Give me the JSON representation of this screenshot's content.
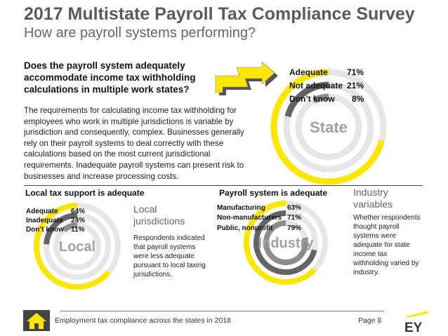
{
  "header": {
    "title": "2017 Multistate Payroll Tax Compliance Survey",
    "subtitle": "How are payroll systems performing?"
  },
  "intro": {
    "question": "Does the payroll system adequately accommodate income tax withholding calculations in multiple work states?",
    "body": "The requirements for calculating income tax withholding for employees who work in multiple jurisdictions is variable by jurisdiction and consequently, complex. Businesses generally rely on their payroll systems to deal correctly with these calculations based on the most current jurisdictional requirements. Inadequate payroll systems can present risk to businesses and increase processing costs."
  },
  "sections": {
    "local_heading": "Local tax support is adequate",
    "local_side_title": "Local jurisdictions",
    "local_side_text": "Respondents indicated that payroll systems were less adequate pursuant to local taxing jurisdictions.",
    "industry_heading": "Payroll system is adequate",
    "industry_side_title": "Industry variables",
    "industry_side_text": "Whether respondents thought payroll systems were adequate for state income tax withholding varied by industry."
  },
  "footer": {
    "text": "Employment tax compliance across the states in 2018",
    "page": "Page 8",
    "logo_text": "EY"
  },
  "icons": {
    "home": "home-icon",
    "logo": "ey-logo"
  },
  "colors": {
    "yellow": "#FFE600",
    "dark_gray": "#646464",
    "mid_gray": "#8c8c8c",
    "light_gray": "#c0c0c0",
    "track": "#e6e6e6"
  },
  "chart_data": [
    {
      "type": "donut",
      "center_label": "State",
      "series": [
        {
          "label": "Adequate",
          "value": 71,
          "display": "71%"
        },
        {
          "label": "Not adequate",
          "value": 21,
          "display": "21%"
        },
        {
          "label": "Don’t know",
          "value": 8,
          "display": "8%"
        }
      ]
    },
    {
      "type": "donut",
      "center_label": "Local",
      "series": [
        {
          "label": "Adequate",
          "value": 64,
          "display": "64%"
        },
        {
          "label": "Inadequate",
          "value": 24,
          "display": "24%"
        },
        {
          "label": "Don’t know",
          "value": 11,
          "display": "11%"
        }
      ]
    },
    {
      "type": "donut",
      "center_label": "Industry",
      "series": [
        {
          "label": "Manufacturing",
          "value": 63,
          "display": "63%"
        },
        {
          "label": "Non-manufacturers",
          "value": 71,
          "display": "71%"
        },
        {
          "label": "Public, nonprofit",
          "value": 79,
          "display": "79%"
        }
      ]
    }
  ]
}
